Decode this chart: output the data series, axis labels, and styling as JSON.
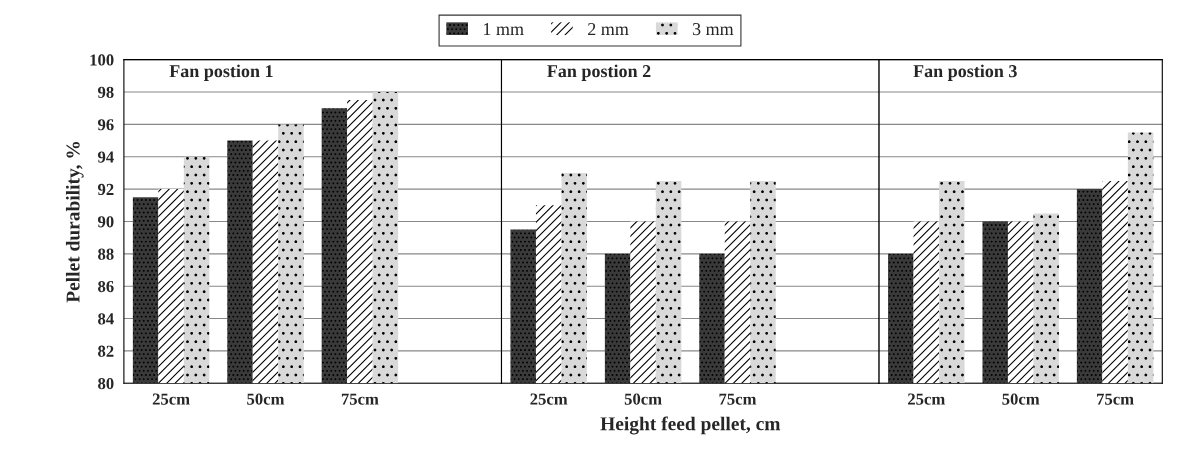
{
  "chart_data": [
    {
      "type": "bar",
      "categories": [
        "25cm",
        "50cm",
        "75cm",
        null
      ],
      "ylabel": "Pellet durability, %",
      "annotations": [
        "Fan postion 1"
      ],
      "ylim": [
        80,
        100
      ],
      "yticks": [
        80,
        82,
        84,
        86,
        88,
        90,
        92,
        94,
        96,
        98,
        100
      ],
      "grid": "y",
      "legend": "top",
      "series": [
        {
          "name": "1 mm",
          "color": "#3a3a3a",
          "values": [
            91.5,
            95,
            97,
            null
          ]
        },
        {
          "name": "2 mm",
          "color": "#ffffff",
          "values": [
            92,
            95,
            97.5,
            null
          ]
        },
        {
          "name": "3 mm",
          "color": "#d9d9d9",
          "values": [
            94,
            96,
            98,
            null
          ]
        }
      ]
    },
    {
      "type": "bar",
      "categories": [
        "25cm",
        "50cm",
        "75cm",
        null
      ],
      "xlabel": "Height feed pellet, cm",
      "annotations": [
        "Fan postion 2"
      ],
      "ylim": [
        80,
        100
      ],
      "yticks": [
        80,
        82,
        84,
        86,
        88,
        90,
        92,
        94,
        96,
        98,
        100
      ],
      "grid": "y",
      "tick_labels": "x",
      "series": [
        {
          "color": "#3a3a3a",
          "values": [
            89.5,
            88,
            88,
            null
          ]
        },
        {
          "color": "#ffffff",
          "values": [
            91,
            90,
            90,
            null
          ]
        },
        {
          "color": "#d9d9d9",
          "values": [
            93,
            92.5,
            92.5,
            null
          ]
        }
      ]
    },
    {
      "type": "bar",
      "categories": [
        "25cm",
        "50cm",
        "75cm"
      ],
      "annotations": [
        "Fan postion 3"
      ],
      "ylim": [
        80,
        100
      ],
      "yticks": [
        80,
        82,
        84,
        86,
        88,
        90,
        92,
        94,
        96,
        98,
        100
      ],
      "grid": "y",
      "tick_labels": "x",
      "series": [
        {
          "color": "#3a3a3a",
          "values": [
            88,
            90,
            92
          ]
        },
        {
          "color": "#ffffff",
          "values": [
            90,
            90,
            92.5
          ]
        },
        {
          "color": "#d9d9d9",
          "values": [
            92.5,
            90.5,
            95.5
          ]
        }
      ]
    }
  ]
}
